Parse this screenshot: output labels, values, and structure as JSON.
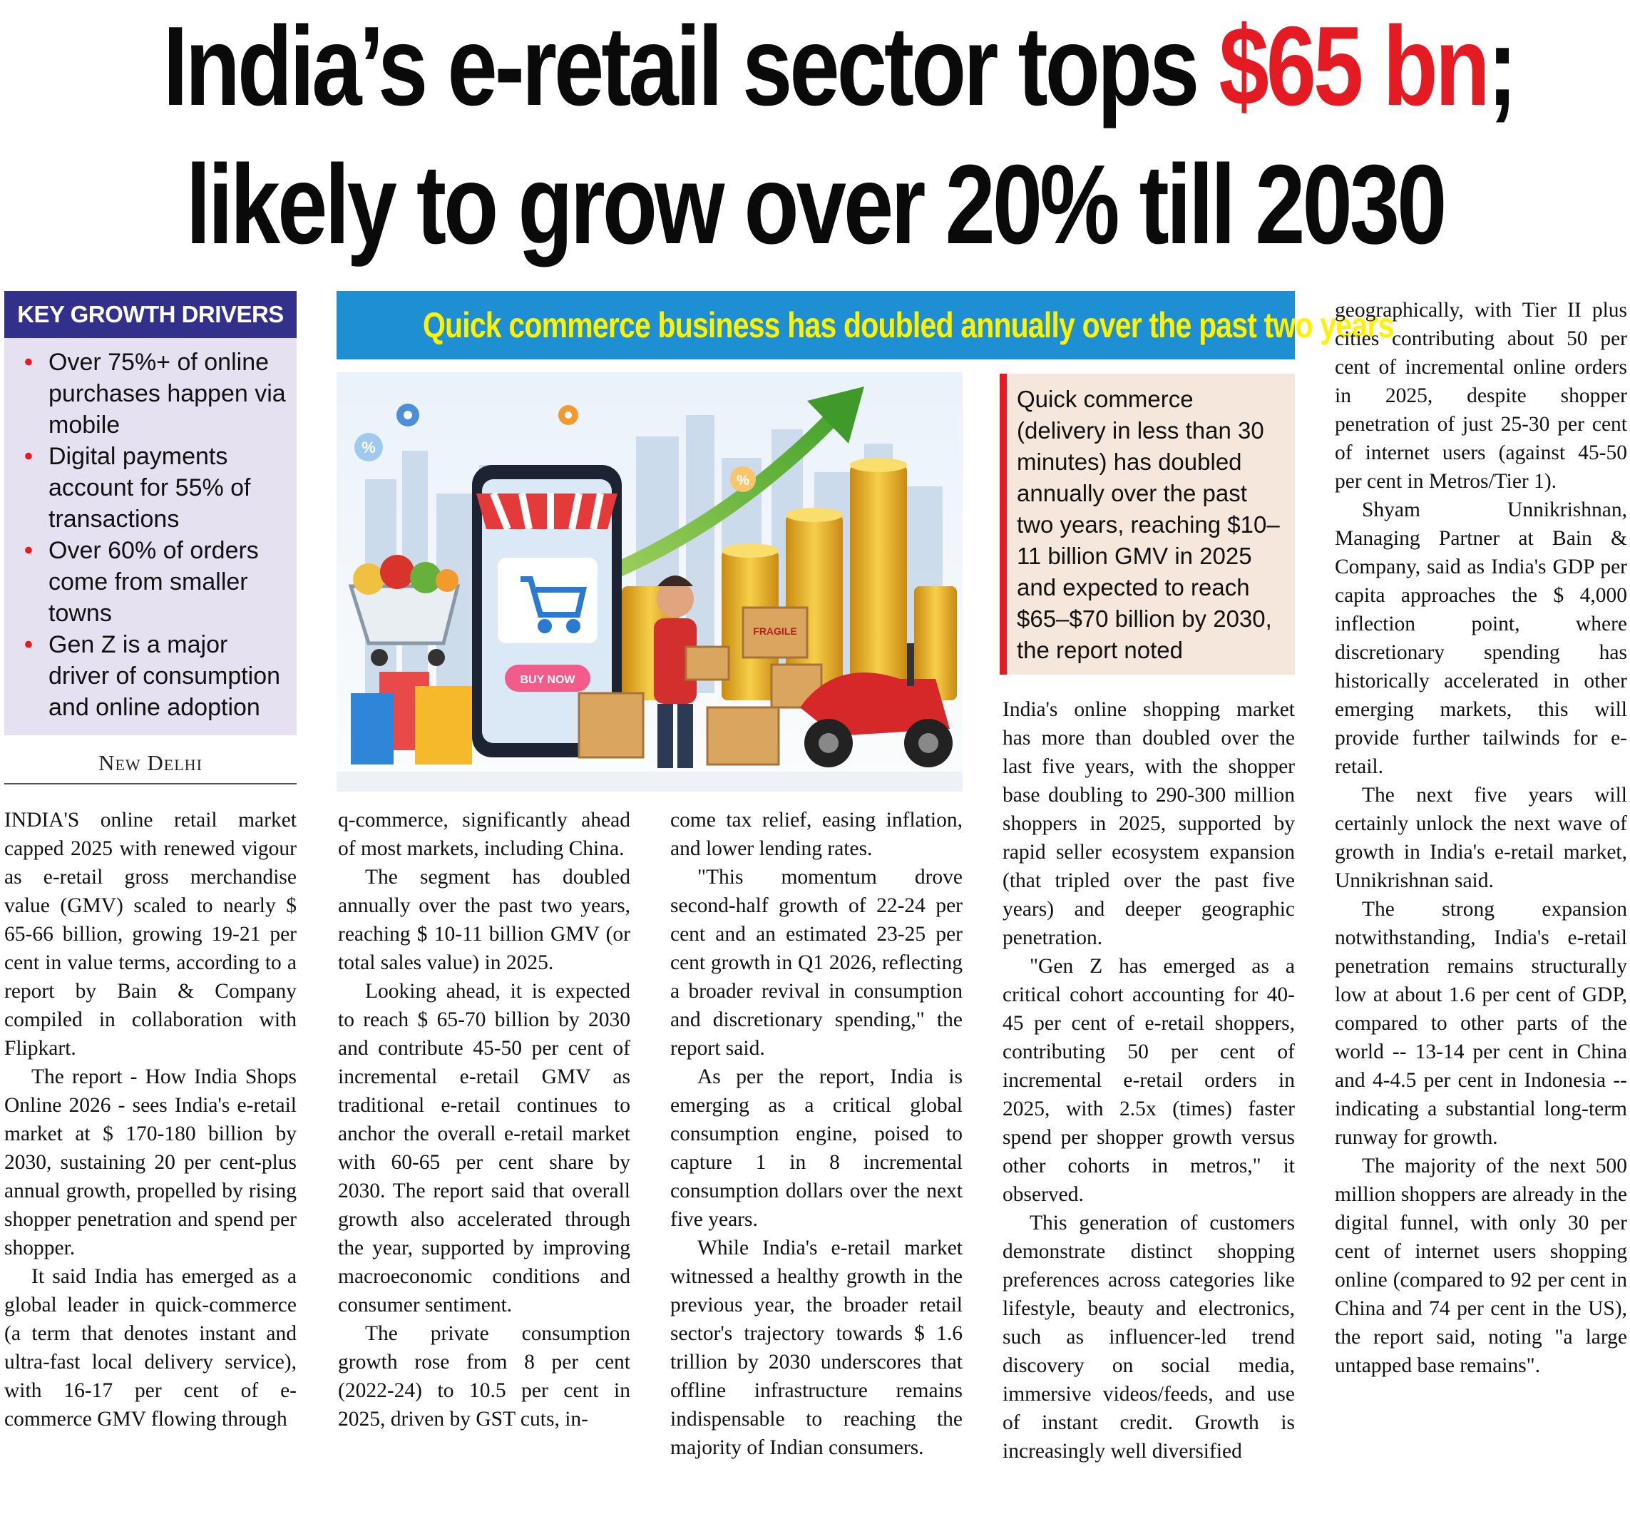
{
  "headline": {
    "line1_prefix": "India’s e-retail sector tops ",
    "line1_accent": "$65 bn",
    "line1_suffix": ";",
    "line2": "likely to grow over 20% till 2030"
  },
  "key_drivers": {
    "title": "KEY GROWTH DRIVERS",
    "items": [
      "Over 75%+ of online purchases happen via mobile",
      "Digital payments account for 55% of transactions",
      "Over 60% of orders come from smaller towns",
      "Gen Z is a major driver of consumption and online adoption"
    ]
  },
  "dateline": "New Delhi",
  "banner": "Quick commerce business has doubled annually over the past two years",
  "pull_quote": "Quick commerce (delivery in less than 30 minutes) has doubled annually over the past two years, reaching $10–11 billion GMV in 2025 and expected to reach $65–$70 billion by 2030, the report noted",
  "illustration": {
    "button_label": "BUY NOW",
    "box_label": "FRAGILE",
    "percent_badge": "%"
  },
  "colors": {
    "accent_red": "#e41b23",
    "banner_blue": "#1e8fd3",
    "banner_yellow": "#fff200",
    "drivers_header": "#32308a",
    "drivers_bg": "#e5e1f1",
    "quote_bg": "#f6e7dd"
  },
  "columns": {
    "col1": [
      "INDIA'S online retail market capped 2025 with renewed vigour as e-retail gross merchandise value (GMV) scaled to nearly $ 65-66 billion, growing 19-21 per cent in value terms, according to a report by Bain & Company compiled in collaboration with Flipkart.",
      "The report - How India Shops Online 2026 - sees India's e-retail market at $ 170-180 billion by 2030, sustaining 20 per cent-plus annual growth, propelled by rising shopper penetration and spend per shopper.",
      "It said India has emerged as a global leader in quick-commerce (a term that denotes instant and ultra-fast local delivery service), with 16-17 per cent of e-commerce GMV flowing through"
    ],
    "col2": [
      "q-commerce, significantly ahead of most markets, including China.",
      "The segment has doubled annually over the past two years, reaching $ 10-11 billion GMV (or total sales value) in 2025.",
      "Looking ahead, it is expected to reach $ 65-70 billion by 2030 and contribute 45-50 per cent of incremental e-retail GMV as traditional e-retail continues to anchor the overall e-retail market with 60-65 per cent share by 2030. The report said that overall growth also accelerated through the year, supported by improving macroeconomic conditions and consumer sentiment.",
      "The private consumption growth rose from 8 per cent (2022-24) to 10.5 per cent in 2025, driven by GST cuts, in-"
    ],
    "col3": [
      "come tax relief, easing inflation, and lower lending rates.",
      "\"This momentum drove second-half growth of 22-24 per cent and an estimated 23-25 per cent growth in Q1 2026, reflecting a broader revival in consumption and discretionary spending,\" the report said.",
      "As per the report, India is emerging as a critical global consumption engine, poised to capture 1 in 8 incremental consumption dollars over the next five years.",
      "While India's e-retail market witnessed a healthy growth in the previous year, the broader retail sector's trajectory towards $ 1.6 trillion by 2030 underscores that offline infrastructure remains indispensable to reaching the majority of Indian consumers."
    ],
    "col4": [
      "India's online shopping market has more than doubled over the last five years, with the shopper base doubling to 290-300 million shoppers in 2025, supported by rapid seller ecosystem expansion (that tripled over the past five years) and deeper geographic penetration.",
      "\"Gen Z has emerged as a critical cohort accounting for 40-45 per cent of e-retail shoppers, contributing 50 per cent of incremental e-retail orders in 2025, with 2.5x (times) faster spend per shopper growth versus other cohorts in metros,\" it observed.",
      "This generation of customers demonstrate distinct shopping preferences across categories like lifestyle, beauty and electronics, such as influencer-led trend discovery on social media, immersive videos/feeds, and use of instant credit. Growth is increasingly well diversified"
    ],
    "col5": [
      "geographically, with Tier II plus cities contributing about 50 per cent of incremental online orders in 2025, despite shopper penetration of just 25-30 per cent of internet users (against 45-50 per cent in Metros/Tier 1).",
      "Shyam Unnikrishnan, Managing Partner at Bain & Company, said as India's GDP per capita approaches the $ 4,000 inflection point, where discretionary spending has historically accelerated in other emerging markets, this will provide further tailwinds for e-retail.",
      "The next five years will certainly unlock the next wave of growth in India's e-retail market, Unnikrishnan said.",
      "The strong expansion notwithstanding, India's e-retail penetration remains structurally low at about 1.6 per cent of GDP, compared to other parts of the world -- 13-14 per cent in China and 4-4.5 per cent in Indonesia -- indicating a substantial long-term runway for growth.",
      "The majority of the next 500 million shoppers are already in the digital funnel, with only 30 per cent of internet users shopping online (compared to 92 per cent in China and 74 per cent in the US), the report said, noting \"a large untapped base remains\"."
    ]
  }
}
